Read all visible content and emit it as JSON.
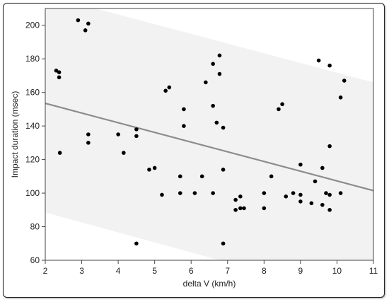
{
  "chart_data": {
    "type": "scatter",
    "title": "",
    "xlabel": "delta V (km/h)",
    "ylabel": "Impact duration (msec)",
    "xlim": [
      2,
      11
    ],
    "ylim": [
      60,
      210
    ],
    "x_ticks": [
      2,
      3,
      4,
      5,
      6,
      7,
      8,
      9,
      10,
      11
    ],
    "y_ticks": [
      60,
      80,
      100,
      120,
      140,
      160,
      180,
      200
    ],
    "grid": false,
    "colors": {
      "points": "#000000",
      "fit_line": "#8c8c8c",
      "band": "#f2f2f2"
    },
    "fit_line": {
      "x": [
        2,
        11
      ],
      "y": [
        153.5,
        101.5
      ]
    },
    "prediction_band": {
      "upper": {
        "x": [
          2,
          11
        ],
        "y": [
          218,
          166
        ]
      },
      "lower": {
        "x": [
          2,
          11
        ],
        "y": [
          88.5,
          35
        ]
      }
    },
    "points": [
      [
        2.3,
        173
      ],
      [
        2.38,
        172
      ],
      [
        2.38,
        169
      ],
      [
        2.4,
        124
      ],
      [
        2.9,
        203
      ],
      [
        3.1,
        197
      ],
      [
        3.18,
        201
      ],
      [
        3.18,
        135
      ],
      [
        3.18,
        130
      ],
      [
        4.0,
        135
      ],
      [
        4.15,
        124
      ],
      [
        4.5,
        138
      ],
      [
        4.5,
        134
      ],
      [
        4.5,
        70
      ],
      [
        4.85,
        114
      ],
      [
        5.0,
        115
      ],
      [
        5.2,
        99
      ],
      [
        5.3,
        161
      ],
      [
        5.4,
        163
      ],
      [
        5.7,
        110
      ],
      [
        5.7,
        100
      ],
      [
        5.8,
        150
      ],
      [
        5.8,
        140
      ],
      [
        6.1,
        100
      ],
      [
        6.3,
        110
      ],
      [
        6.4,
        166
      ],
      [
        6.6,
        177
      ],
      [
        6.6,
        152
      ],
      [
        6.6,
        100
      ],
      [
        6.7,
        142
      ],
      [
        6.78,
        182
      ],
      [
        6.78,
        171
      ],
      [
        6.88,
        139
      ],
      [
        6.88,
        114
      ],
      [
        6.88,
        70
      ],
      [
        7.22,
        96
      ],
      [
        7.22,
        90
      ],
      [
        7.35,
        98
      ],
      [
        7.35,
        91
      ],
      [
        7.45,
        91
      ],
      [
        8.0,
        100
      ],
      [
        8.0,
        91
      ],
      [
        8.2,
        110
      ],
      [
        8.4,
        150
      ],
      [
        8.5,
        153
      ],
      [
        8.6,
        98
      ],
      [
        8.8,
        100
      ],
      [
        9.0,
        117
      ],
      [
        9.0,
        99
      ],
      [
        9.0,
        95
      ],
      [
        9.3,
        94
      ],
      [
        9.4,
        107
      ],
      [
        9.5,
        179
      ],
      [
        9.6,
        115
      ],
      [
        9.6,
        93
      ],
      [
        9.7,
        100
      ],
      [
        9.8,
        176
      ],
      [
        9.8,
        128
      ],
      [
        9.8,
        99
      ],
      [
        9.8,
        90
      ],
      [
        10.1,
        157
      ],
      [
        10.1,
        100
      ],
      [
        10.2,
        167
      ]
    ]
  }
}
